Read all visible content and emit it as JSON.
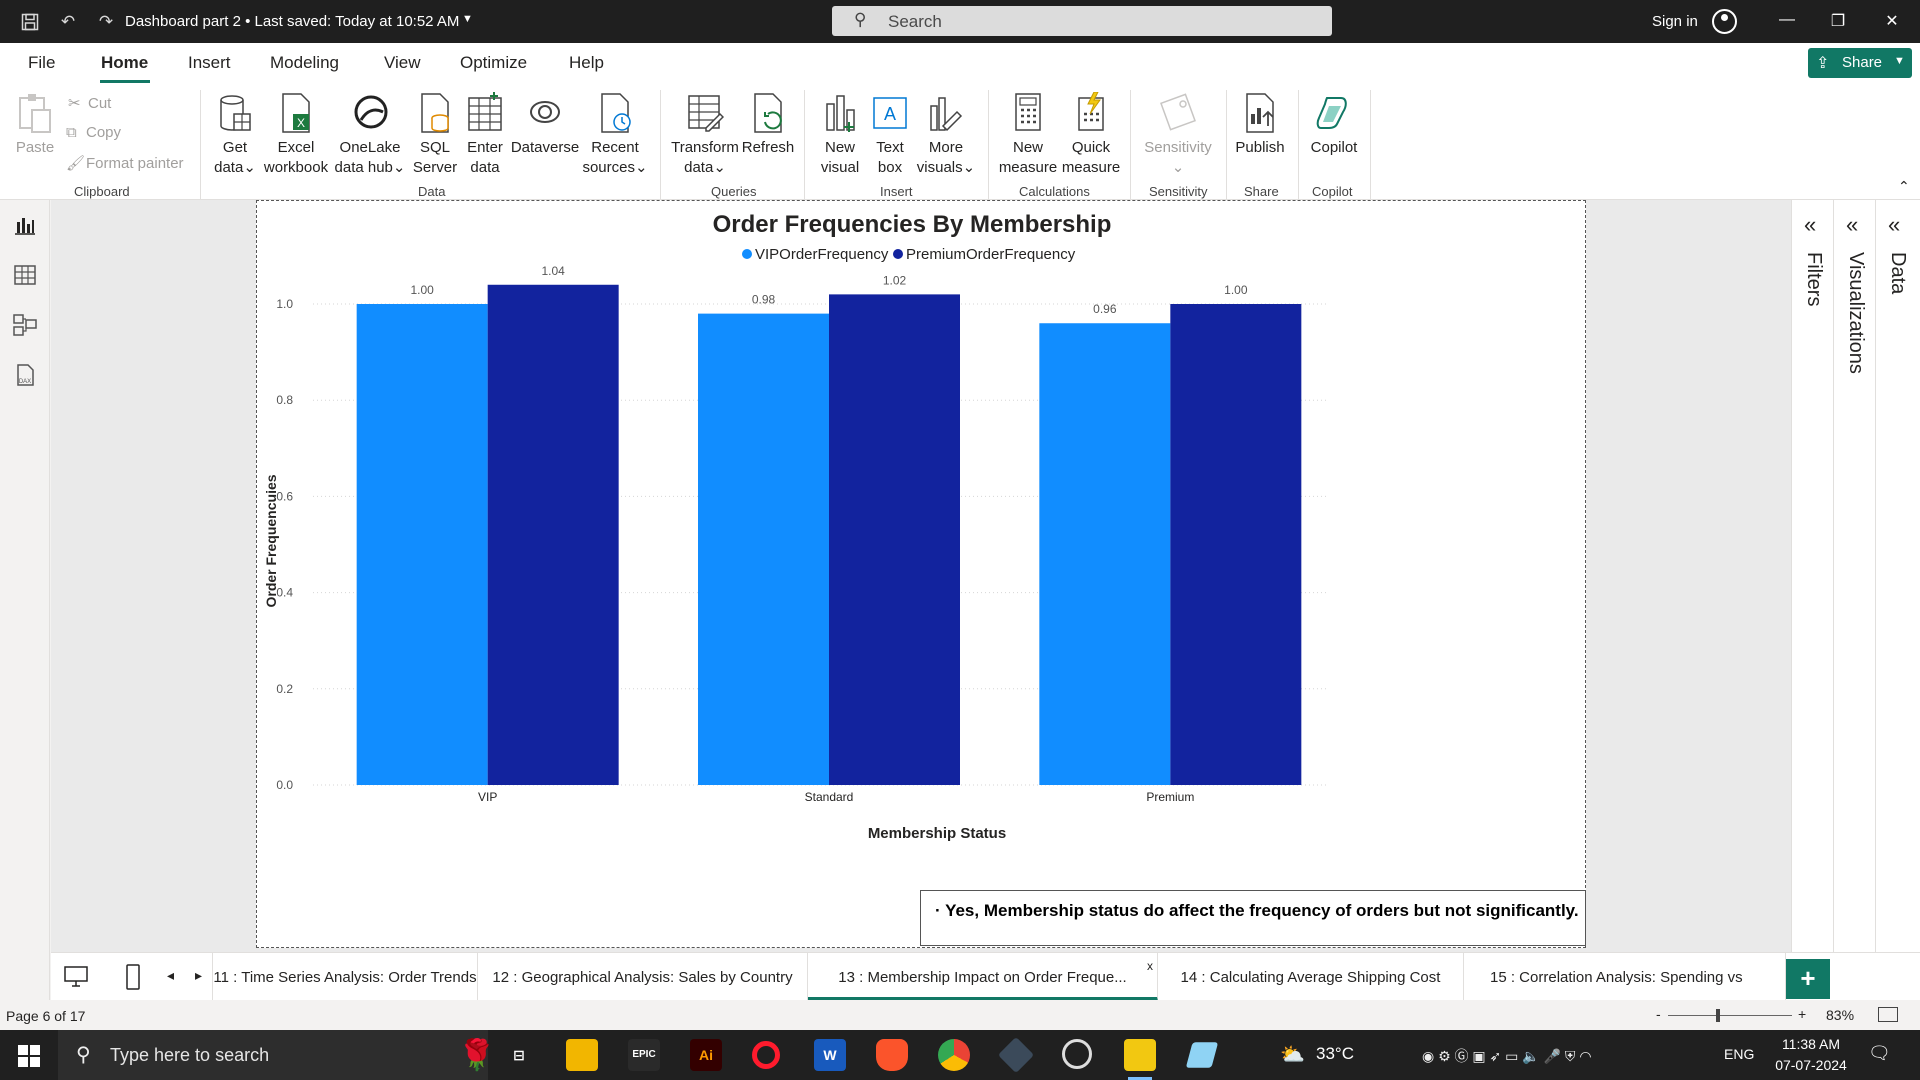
{
  "titlebar": {
    "doc_title": "Dashboard part 2 • Last saved: Today at 10:52 AM",
    "search_placeholder": "Search",
    "sign_in": "Sign in"
  },
  "menu": {
    "items": [
      "File",
      "Home",
      "Insert",
      "Modeling",
      "View",
      "Optimize",
      "Help"
    ],
    "active": "Home",
    "share_label": "Share"
  },
  "ribbon": {
    "clipboard": {
      "paste": "Paste",
      "cut": "Cut",
      "copy": "Copy",
      "format_painter": "Format painter",
      "group": "Clipboard"
    },
    "data": {
      "get_data": [
        "Get",
        "data"
      ],
      "excel": [
        "Excel",
        "workbook"
      ],
      "onelake": [
        "OneLake",
        "data hub"
      ],
      "sql": [
        "SQL",
        "Server"
      ],
      "enter": [
        "Enter",
        "data"
      ],
      "dataverse": "Dataverse",
      "recent": [
        "Recent",
        "sources"
      ],
      "group": "Data"
    },
    "queries": {
      "transform": [
        "Transform",
        "data"
      ],
      "refresh": "Refresh",
      "group": "Queries"
    },
    "insert": {
      "new_visual": [
        "New",
        "visual"
      ],
      "text_box": [
        "Text",
        "box"
      ],
      "more_visuals": [
        "More",
        "visuals"
      ],
      "group": "Insert"
    },
    "calculations": {
      "new_measure": [
        "New",
        "measure"
      ],
      "quick_measure": [
        "Quick",
        "measure"
      ],
      "group": "Calculations"
    },
    "sensitivity": {
      "label": "Sensitivity",
      "group": "Sensitivity"
    },
    "share": {
      "publish": "Publish",
      "group": "Share"
    },
    "copilot": {
      "label": "Copilot",
      "group": "Copilot"
    }
  },
  "panes": {
    "filters": "Filters",
    "visualizations": "Visualizations",
    "data": "Data"
  },
  "chart_data": {
    "type": "bar",
    "title": "Order Frequencies By Membership",
    "xlabel": "Membership Status",
    "ylabel": "Order Frequencuies",
    "categories": [
      "VIP",
      "Standard",
      "Premium"
    ],
    "series": [
      {
        "name": "VIPOrderFrequency",
        "values": [
          1.0,
          0.98,
          0.96
        ],
        "labels": [
          "1.00",
          "0.98",
          "0.96"
        ],
        "color": "#118dff"
      },
      {
        "name": "PremiumOrderFrequency",
        "values": [
          1.04,
          1.02,
          1.0
        ],
        "labels": [
          "1.04",
          "1.02",
          "1.00"
        ],
        "color": "#12239e"
      }
    ],
    "ylim": [
      0,
      1.0
    ],
    "yticks": [
      "0.0",
      "0.2",
      "0.4",
      "0.6",
      "0.8",
      "1.0"
    ],
    "legend": "top-center",
    "grid": true
  },
  "insight_text": "· Yes, Membership status do affect the frequency of orders but not significantly.",
  "page_tabs": [
    "11 : Time Series Analysis: Order Trends",
    "12 : Geographical Analysis: Sales by Country",
    "13 : Membership Impact on Order Freque...",
    "14 : Calculating Average Shipping Cost",
    "15 : Correlation Analysis: Spending vs"
  ],
  "active_page_tab": 2,
  "close_glyph": "x",
  "add_page": "+",
  "status": {
    "page_count": "Page 6 of 17",
    "zoom": "83%",
    "zoom_minus": "-",
    "zoom_plus": "+"
  },
  "taskbar": {
    "search_placeholder": "Type here to search",
    "weather": "33°C",
    "language": "ENG",
    "time": "11:38 AM",
    "date": "07-07-2024",
    "apps": [
      "EPIC",
      "Ai",
      "W"
    ]
  },
  "colors": {
    "accent": "#117865",
    "series1": "#118dff",
    "series2": "#12239e"
  }
}
